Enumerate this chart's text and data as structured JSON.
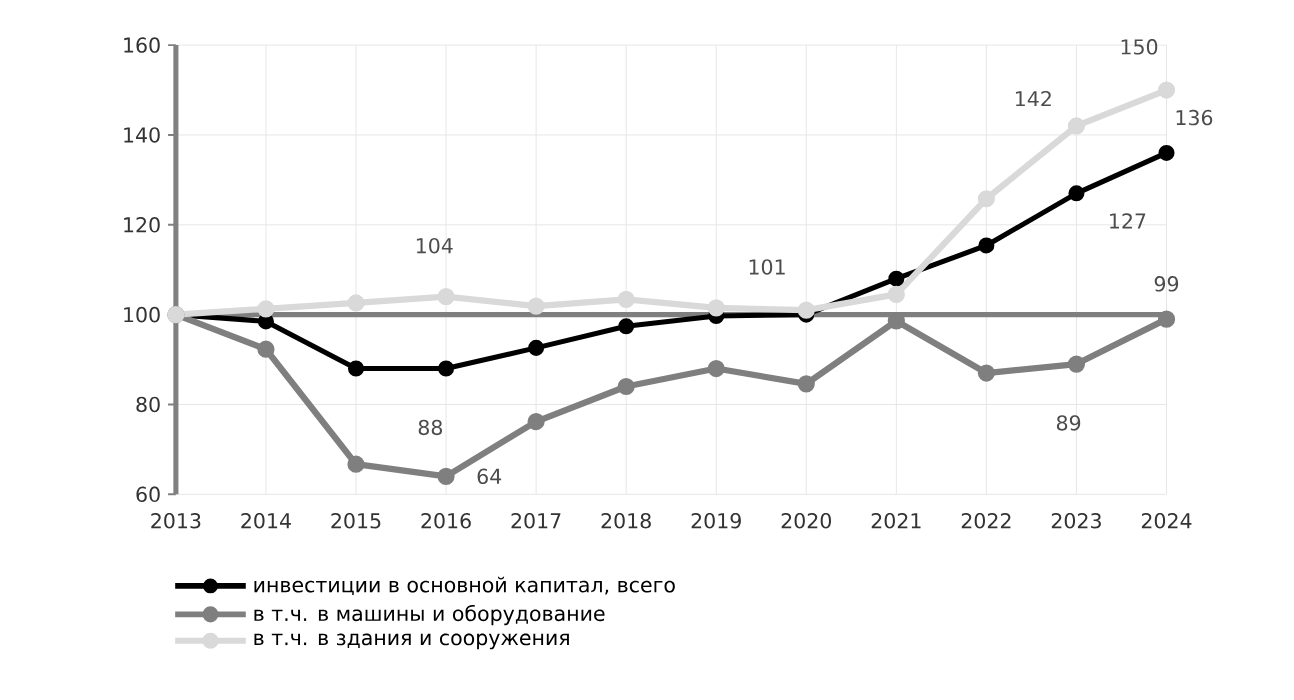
{
  "chart_data": {
    "type": "line",
    "categories": [
      "2013",
      "2014",
      "2015",
      "2016",
      "2017",
      "2018",
      "2019",
      "2020",
      "2021",
      "2022",
      "2023",
      "2024"
    ],
    "series": [
      {
        "name": "инвестиции в основной капитал, всего",
        "color": "#000000",
        "values": [
          100,
          98.5,
          88,
          88,
          92.6,
          97.4,
          99.7,
          100,
          108,
          115.4,
          127,
          136
        ],
        "value_labels": [
          null,
          null,
          null,
          "88",
          null,
          null,
          null,
          null,
          null,
          null,
          "127",
          "136"
        ]
      },
      {
        "name": "в т.ч. в машины и оборудование",
        "color": "#7f7f7f",
        "values": [
          100,
          92.3,
          66.7,
          64,
          76.2,
          84,
          88,
          84.6,
          98.6,
          87,
          89,
          99
        ],
        "value_labels": [
          null,
          null,
          null,
          "64",
          null,
          null,
          null,
          null,
          null,
          null,
          "89",
          "99"
        ]
      },
      {
        "name": "в т.ч. в здания и сооружения",
        "color": "#d9d9d9",
        "values": [
          100,
          101.3,
          102.6,
          104,
          101.9,
          103.4,
          101.5,
          101,
          104.5,
          125.8,
          142,
          150
        ],
        "value_labels": [
          null,
          null,
          null,
          "104",
          null,
          null,
          null,
          "101",
          null,
          null,
          "142",
          "150"
        ]
      }
    ],
    "ylim": [
      60,
      160
    ],
    "yticks": [
      60,
      80,
      100,
      120,
      140,
      160
    ],
    "ref_lines": [
      {
        "axis": "y",
        "value": 100,
        "color": "#7f7f7f"
      }
    ],
    "grid": true,
    "legend": "bottom",
    "marker": "circle",
    "line_style": "solid"
  }
}
